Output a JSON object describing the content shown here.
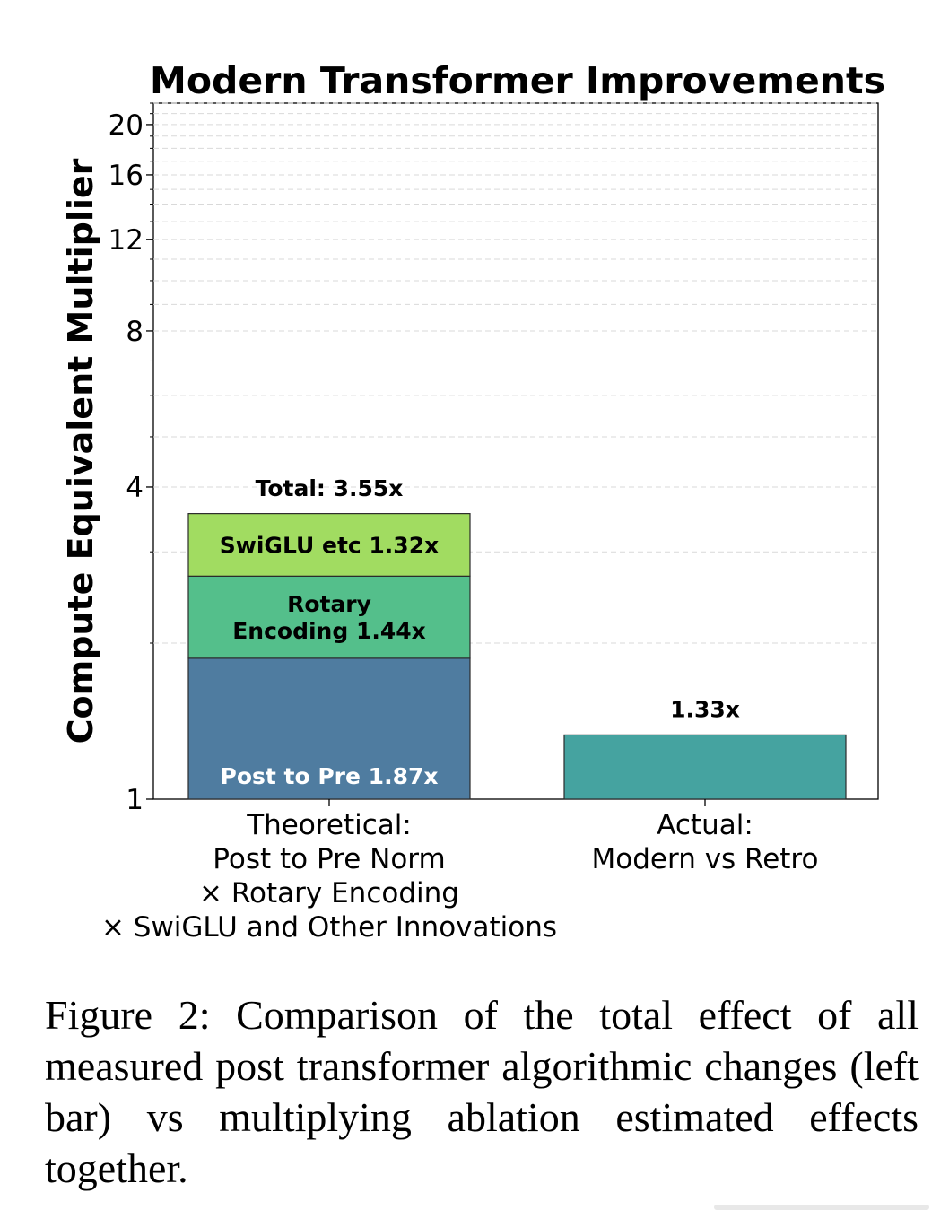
{
  "chart_data": {
    "type": "bar",
    "stacked": true,
    "title": "Modern Transformer Improvements",
    "ylabel": "Compute Equivalent Multiplier",
    "xlabel": "",
    "yscale": "log",
    "ylim": [
      1,
      22
    ],
    "yticks": [
      1,
      4,
      8,
      12,
      16,
      20
    ],
    "ytick_labels": [
      "1",
      "4",
      "8",
      "12",
      "16",
      "20"
    ],
    "grid": true,
    "categories": [
      [
        "Theoretical:",
        "Post to Pre Norm",
        "× Rotary Encoding",
        "× SwiGLU and Other Innovations"
      ],
      [
        "Actual:",
        "Modern vs Retro"
      ]
    ],
    "stacks": [
      {
        "category_index": 0,
        "segments": [
          {
            "name": "Post to Pre",
            "multiplier": 1.87,
            "label": "Post to Pre 1.87x",
            "label_lines": [
              "Post to Pre 1.87x"
            ],
            "color": "#4f7ca0",
            "label_color": "#ffffff"
          },
          {
            "name": "Rotary Encoding",
            "multiplier": 1.44,
            "label": "Rotary Encoding 1.44x",
            "label_lines": [
              "Rotary",
              "Encoding 1.44x"
            ],
            "color": "#54bf8b",
            "label_color": "#000000"
          },
          {
            "name": "SwiGLU etc",
            "multiplier": 1.32,
            "label": "SwiGLU etc 1.32x",
            "label_lines": [
              "SwiGLU etc 1.32x"
            ],
            "color": "#a1dc61",
            "label_color": "#000000"
          }
        ],
        "total": 3.55,
        "total_label": "Total: 3.55x"
      },
      {
        "category_index": 1,
        "segments": [
          {
            "name": "Modern vs Retro",
            "multiplier": 1.33,
            "label": "",
            "label_lines": [],
            "color": "#45a3a0",
            "label_color": "#000000"
          }
        ],
        "total": 1.33,
        "total_label": "1.33x"
      }
    ]
  },
  "caption": {
    "text": "Figure 2: Comparison of the total effect of all measured post transformer algorithmic changes (left bar) vs multiplying ablation estimated effects together."
  }
}
